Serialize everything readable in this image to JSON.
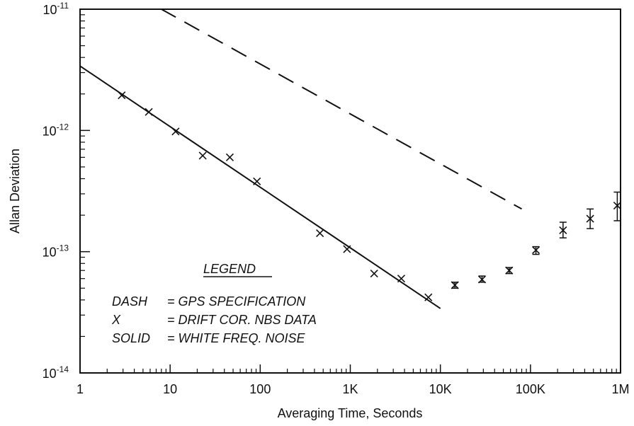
{
  "chart_data": {
    "type": "scatter",
    "title": "",
    "xlabel": "Averaging Time, Seconds",
    "ylabel": "Allan Deviation",
    "xscale": "log",
    "yscale": "log",
    "xlim": [
      1,
      1000000
    ],
    "ylim": [
      1e-14,
      1e-11
    ],
    "grid": false,
    "x_ticks": [
      {
        "value": 1,
        "label": "1"
      },
      {
        "value": 10,
        "label": "10"
      },
      {
        "value": 100,
        "label": "100"
      },
      {
        "value": 1000,
        "label": "1K"
      },
      {
        "value": 10000,
        "label": "10K"
      },
      {
        "value": 100000,
        "label": "100K"
      },
      {
        "value": 1000000,
        "label": "1M"
      }
    ],
    "y_ticks": [
      {
        "value": 1e-14,
        "base": "10",
        "exp": "-14"
      },
      {
        "value": 1e-13,
        "base": "10",
        "exp": "-13"
      },
      {
        "value": 1e-12,
        "base": "10",
        "exp": "-12"
      },
      {
        "value": 1e-11,
        "base": "10",
        "exp": "-11"
      }
    ],
    "legend": {
      "placement": "lower-left",
      "title": "LEGEND",
      "entries": [
        {
          "key": "DASH",
          "text": "= GPS SPECIFICATION"
        },
        {
          "key": "X",
          "text": "= DRIFT COR. NBS DATA"
        },
        {
          "key": "SOLID",
          "text": "= WHITE FREQ. NOISE"
        }
      ]
    },
    "series": [
      {
        "name": "GPS SPECIFICATION",
        "style": "dashed",
        "x": [
          1,
          8,
          80000
        ],
        "y": [
          1e-11,
          1e-11,
          2.25e-13
        ]
      },
      {
        "name": "DRIFT COR. NBS DATA",
        "style": "markers-x",
        "x": [
          2.9,
          5.8,
          11.5,
          23,
          46,
          92,
          460,
          920,
          1840,
          3680,
          7360,
          14500,
          29000,
          58000,
          115000,
          230000,
          460000,
          920000
        ],
        "y": [
          1.95e-12,
          1.42e-12,
          9.8e-13,
          6.2e-13,
          6e-13,
          3.8e-13,
          1.42e-13,
          1.05e-13,
          6.6e-14,
          6e-14,
          4.2e-14,
          5.3e-14,
          5.9e-14,
          7e-14,
          1.03e-13,
          1.5e-13,
          1.87e-13,
          2.4e-13
        ],
        "y_low": [
          null,
          null,
          null,
          null,
          null,
          null,
          null,
          null,
          null,
          null,
          null,
          5e-14,
          5.6e-14,
          6.6e-14,
          9.5e-14,
          1.3e-13,
          1.55e-13,
          1.8e-13
        ],
        "y_high": [
          null,
          null,
          null,
          null,
          null,
          null,
          null,
          null,
          null,
          null,
          null,
          5.6e-14,
          6.3e-14,
          7.4e-14,
          1.1e-13,
          1.75e-13,
          2.25e-13,
          3.1e-13
        ]
      },
      {
        "name": "WHITE FREQ. NOISE",
        "style": "solid",
        "x": [
          1,
          10000
        ],
        "y": [
          3.4e-12,
          3.4e-14
        ]
      }
    ]
  }
}
